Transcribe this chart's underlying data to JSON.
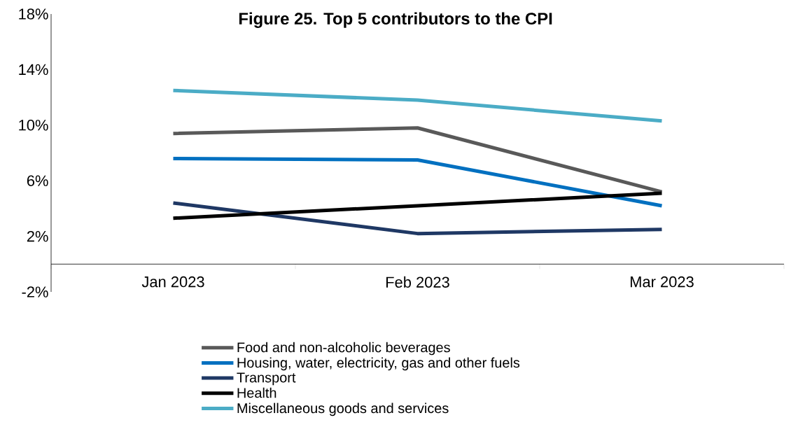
{
  "chart_data": {
    "type": "line",
    "title": "Figure 25. Top 5 contributors to the CPI",
    "categories": [
      "Jan 2023",
      "Feb 2023",
      "Mar 2023"
    ],
    "series": [
      {
        "name": "Food and non-alcoholic beverages",
        "color": "#595959",
        "values": [
          9.4,
          9.8,
          5.2
        ]
      },
      {
        "name": "Housing, water, electricity, gas and other fuels",
        "color": "#0070c0",
        "values": [
          7.6,
          7.5,
          4.2
        ]
      },
      {
        "name": "Transport",
        "color": "#1f3864",
        "values": [
          4.4,
          2.2,
          2.5
        ]
      },
      {
        "name": "Health",
        "color": "#000000",
        "values": [
          3.3,
          4.2,
          5.1
        ]
      },
      {
        "name": "Miscellaneous goods and services",
        "color": "#4bacc6",
        "values": [
          12.5,
          11.8,
          10.3
        ]
      }
    ],
    "ylim": [
      -2,
      18
    ],
    "yticks": [
      {
        "value": -2,
        "label": "-2%"
      },
      {
        "value": 2,
        "label": "2%"
      },
      {
        "value": 6,
        "label": "6%"
      },
      {
        "value": 10,
        "label": "10%"
      },
      {
        "value": 14,
        "label": "14%"
      },
      {
        "value": 18,
        "label": "18%"
      }
    ],
    "grid": false,
    "legend": "bottom",
    "marker": "none",
    "line_style": "solid"
  }
}
